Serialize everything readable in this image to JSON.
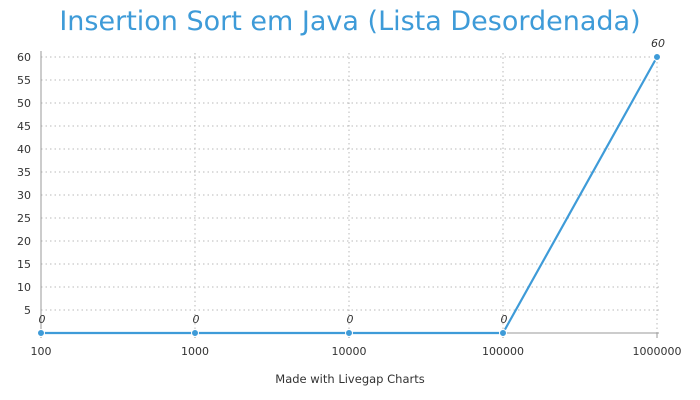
{
  "chart_data": {
    "type": "line",
    "title": "Insertion Sort em Java (Lista Desordenada)",
    "xlabel": "",
    "ylabel": "",
    "categories": [
      "100",
      "1000",
      "10000",
      "100000",
      "1000000"
    ],
    "series": [
      {
        "values": [
          0,
          0,
          0,
          0,
          60
        ],
        "data_labels": [
          "0",
          "0",
          "0",
          "0",
          "60"
        ]
      }
    ],
    "y_ticks": [
      5,
      10,
      15,
      20,
      25,
      30,
      35,
      40,
      45,
      50,
      55,
      60
    ],
    "ylim": [
      0,
      60
    ],
    "grid": "dotted",
    "legend": "none"
  },
  "footer": "Made with Livegap Charts",
  "colors": {
    "title": "#3e9bd8",
    "line": "#3e9bd8",
    "grid": "#b9b9b9",
    "text": "#333333"
  }
}
